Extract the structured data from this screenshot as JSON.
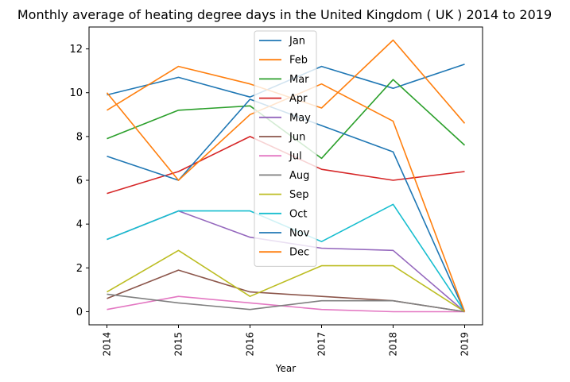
{
  "chart_data": {
    "type": "line",
    "title": "Monthly average of heating degree days in the United Kingdom ( UK ) 2014 to 2019",
    "xlabel": "Year",
    "ylabel": "",
    "x": [
      "2014",
      "2015",
      "2016",
      "2017",
      "2018",
      "2019"
    ],
    "xlim": [
      2013.75,
      2019.25
    ],
    "ylim": [
      -0.6,
      13.0
    ],
    "yticks": [
      0,
      2,
      4,
      6,
      8,
      10,
      12
    ],
    "grid": false,
    "legend_position": "top-center",
    "series": [
      {
        "name": "Jan",
        "color": "#1f77b4",
        "values": [
          9.9,
          10.7,
          9.8,
          11.2,
          10.2,
          11.3
        ]
      },
      {
        "name": "Feb",
        "color": "#ff7f0e",
        "values": [
          9.2,
          11.2,
          10.4,
          9.3,
          12.4,
          8.6
        ]
      },
      {
        "name": "Mar",
        "color": "#2ca02c",
        "values": [
          7.9,
          9.2,
          9.4,
          7.0,
          10.6,
          7.6
        ]
      },
      {
        "name": "Apr",
        "color": "#d62728",
        "values": [
          5.4,
          6.4,
          8.0,
          6.5,
          6.0,
          6.4
        ]
      },
      {
        "name": "May",
        "color": "#9467bd",
        "values": [
          3.3,
          4.6,
          3.4,
          2.9,
          2.8,
          0.0
        ]
      },
      {
        "name": "Jun",
        "color": "#8c564b",
        "values": [
          0.6,
          1.9,
          0.9,
          0.7,
          0.5,
          0.0
        ]
      },
      {
        "name": "Jul",
        "color": "#e377c2",
        "values": [
          0.1,
          0.7,
          0.4,
          0.1,
          0.0,
          0.0
        ]
      },
      {
        "name": "Aug",
        "color": "#7f7f7f",
        "values": [
          0.8,
          0.4,
          0.1,
          0.5,
          0.5,
          0.0
        ]
      },
      {
        "name": "Sep",
        "color": "#bcbd22",
        "values": [
          0.9,
          2.8,
          0.7,
          2.1,
          2.1,
          0.0
        ]
      },
      {
        "name": "Oct",
        "color": "#17becf",
        "values": [
          3.3,
          4.6,
          4.6,
          3.2,
          4.9,
          0.0
        ]
      },
      {
        "name": "Nov",
        "color": "#1f77b4",
        "values": [
          7.1,
          6.0,
          9.7,
          8.5,
          7.3,
          0.0
        ]
      },
      {
        "name": "Dec",
        "color": "#ff7f0e",
        "values": [
          10.0,
          6.0,
          9.0,
          10.4,
          8.7,
          0.0
        ]
      }
    ]
  }
}
